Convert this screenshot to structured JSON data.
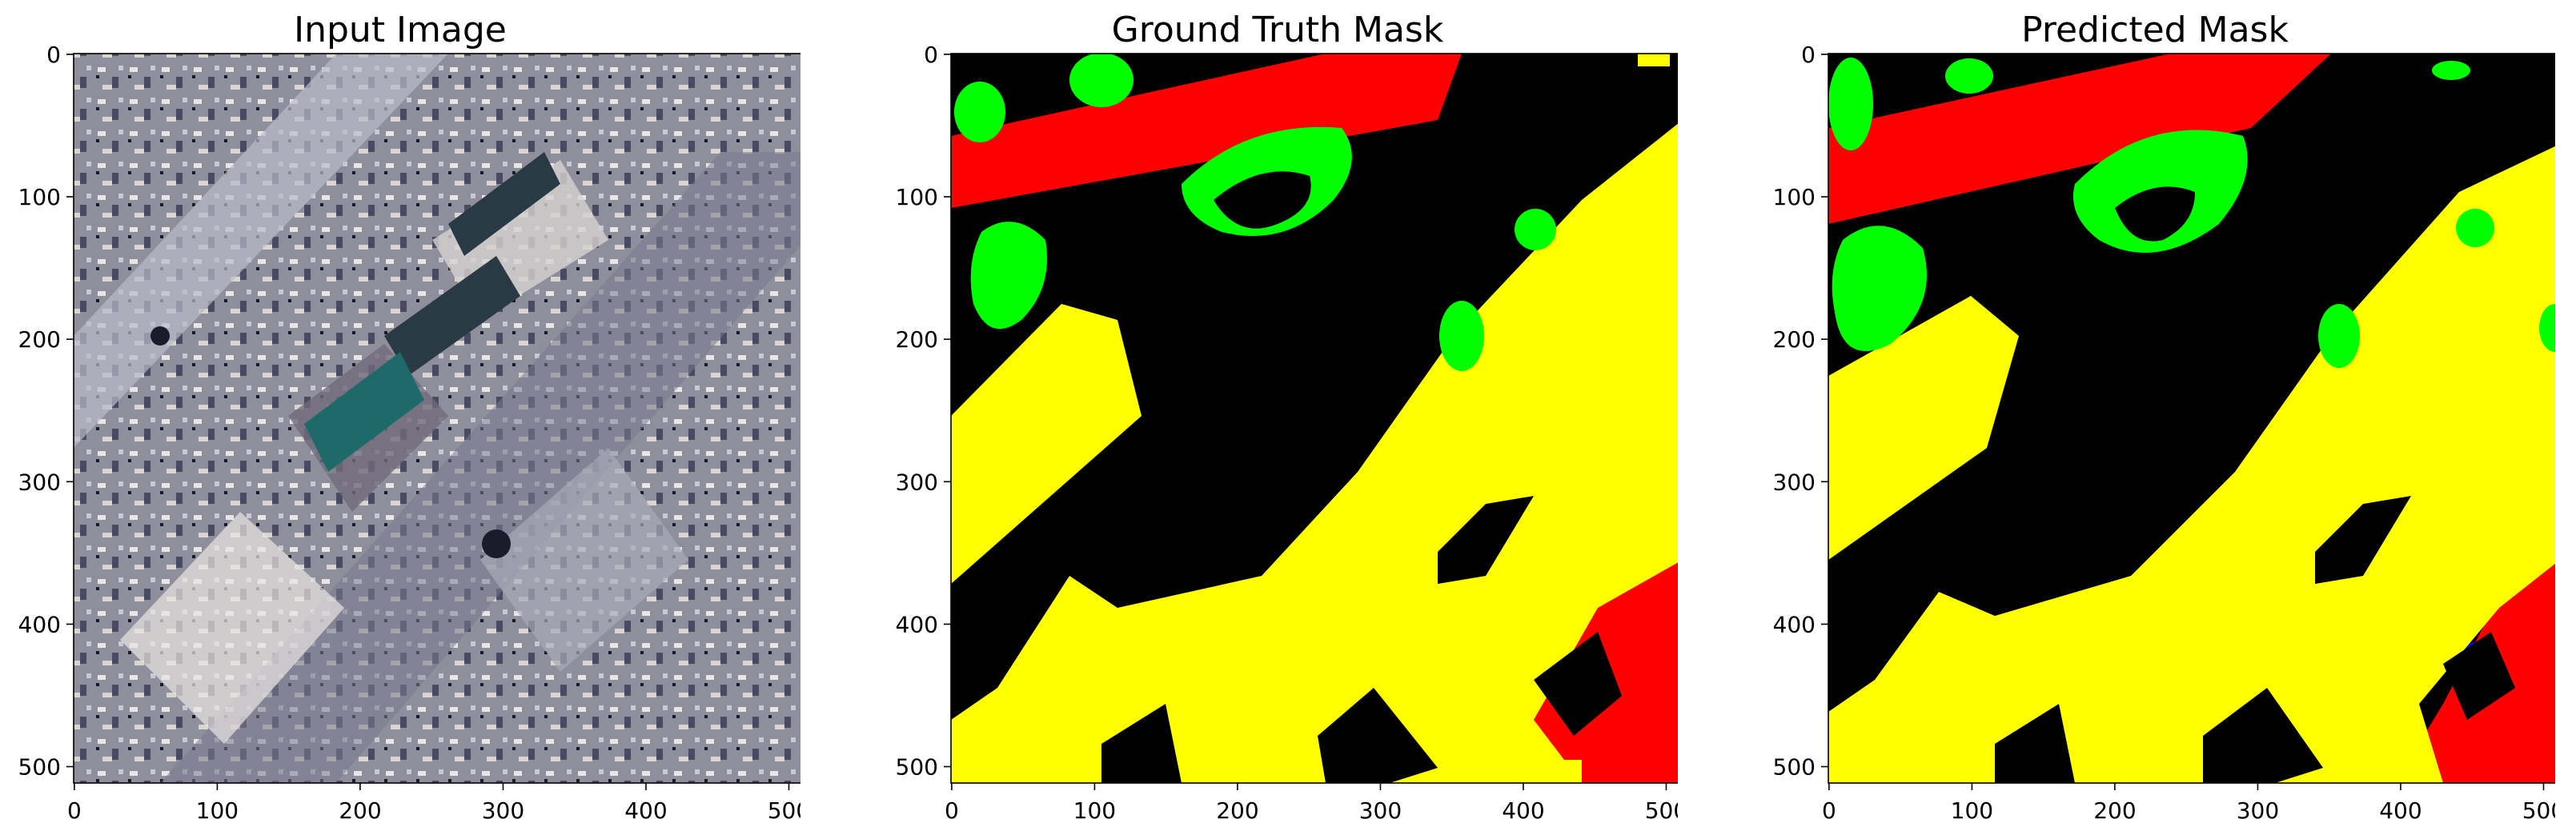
{
  "figure": {
    "panels": [
      {
        "title": "Input Image"
      },
      {
        "title": "Ground Truth Mask"
      },
      {
        "title": "Predicted Mask"
      }
    ],
    "x_ticks": [
      "0",
      "100",
      "200",
      "300",
      "400",
      "500"
    ],
    "y_ticks": [
      "0",
      "100",
      "200",
      "300",
      "400",
      "500"
    ],
    "x_tick_values": [
      0,
      100,
      200,
      300,
      400,
      500
    ],
    "y_tick_values": [
      0,
      100,
      200,
      300,
      400,
      500
    ],
    "image_extent": [
      0,
      512
    ],
    "class_colors": {
      "background": "#000000",
      "road": "#ff0000",
      "vegetation": "#00ff00",
      "building": "#ffff00",
      "water": "#0000ff"
    }
  }
}
